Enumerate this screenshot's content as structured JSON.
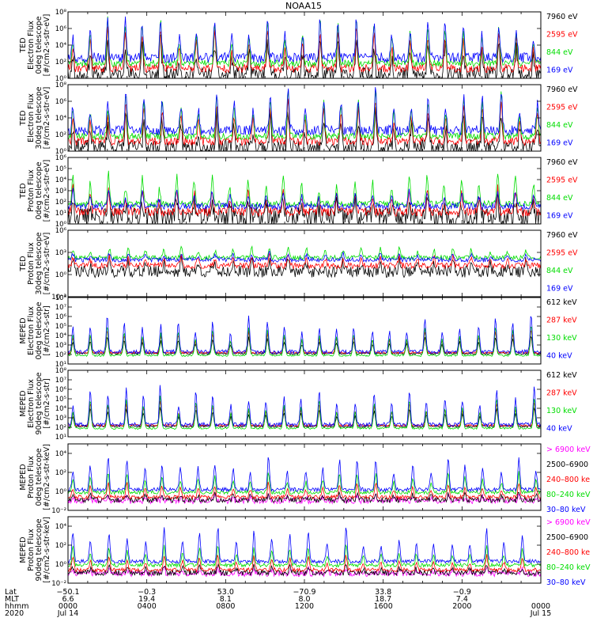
{
  "title": "NOAA15",
  "panels": [
    {
      "ylabel": [
        "TED",
        "Electron Flux",
        "0deg telescope",
        "[#/cm2-s-str-eV]"
      ],
      "yticks": [
        {
          "e": 0,
          "label": "10⁰"
        },
        {
          "e": 2,
          "label": "10²"
        },
        {
          "e": 4,
          "label": "10⁴"
        },
        {
          "e": 6,
          "label": "10⁶"
        },
        {
          "e": 8,
          "label": "10⁸"
        }
      ],
      "legend": [
        {
          "label": "7960 eV",
          "color": "#000000"
        },
        {
          "label": "2595 eV",
          "color": "#ff0000"
        },
        {
          "label": "844 eV",
          "color": "#00dd00"
        },
        {
          "label": "169 eV",
          "color": "#0000ff"
        }
      ]
    },
    {
      "ylabel": [
        "TED",
        "Electron Flux",
        "30deg telescope",
        "[#/cm2-s-str-eV]"
      ],
      "yticks": [
        {
          "e": 0,
          "label": "10⁰"
        },
        {
          "e": 2,
          "label": "10²"
        },
        {
          "e": 4,
          "label": "10⁴"
        },
        {
          "e": 6,
          "label": "10⁶"
        },
        {
          "e": 8,
          "label": "10⁸"
        }
      ],
      "legend": [
        {
          "label": "7960 eV",
          "color": "#000000"
        },
        {
          "label": "2595 eV",
          "color": "#ff0000"
        },
        {
          "label": "844 eV",
          "color": "#00dd00"
        },
        {
          "label": "169 eV",
          "color": "#0000ff"
        }
      ]
    },
    {
      "ylabel": [
        "TED",
        "Proton Flux",
        "0deg telescope",
        "[#/cm2-s-str-eV]"
      ],
      "yticks": [
        {
          "e": 0,
          "label": "10⁰"
        },
        {
          "e": 1,
          "label": "10¹"
        },
        {
          "e": 2,
          "label": "10²"
        },
        {
          "e": 3,
          "label": "10³"
        },
        {
          "e": 4,
          "label": "10⁴"
        },
        {
          "e": 5,
          "label": "10⁵"
        },
        {
          "e": 6,
          "label": "10⁶"
        }
      ],
      "legend": [
        {
          "label": "7960 eV",
          "color": "#000000"
        },
        {
          "label": "2595 eV",
          "color": "#ff0000"
        },
        {
          "label": "844 eV",
          "color": "#00dd00"
        },
        {
          "label": "169 eV",
          "color": "#0000ff"
        }
      ]
    },
    {
      "ylabel": [
        "TED",
        "Proton Flux",
        "30deg telescope",
        "[#/cm2-s-str-eV]"
      ],
      "yticks": [
        {
          "e": -3,
          "label": "10⁻³"
        },
        {
          "e": 0,
          "label": "10⁰"
        },
        {
          "e": 3,
          "label": "10³"
        },
        {
          "e": 6,
          "label": "10⁶"
        }
      ],
      "legend": [
        {
          "label": "7960 eV",
          "color": "#000000"
        },
        {
          "label": "2595 eV",
          "color": "#ff0000"
        },
        {
          "label": "844 eV",
          "color": "#00dd00"
        },
        {
          "label": "169 eV",
          "color": "#0000ff"
        }
      ]
    },
    {
      "ylabel": [
        "MEPED",
        "Electron Flux",
        "0deg telescope",
        "[#/cm2-s-str]"
      ],
      "yticks": [
        {
          "e": 1,
          "label": "10¹"
        },
        {
          "e": 2,
          "label": "10²"
        },
        {
          "e": 3,
          "label": "10³"
        },
        {
          "e": 4,
          "label": "10⁴"
        },
        {
          "e": 5,
          "label": "10⁵"
        },
        {
          "e": 6,
          "label": "10⁶"
        },
        {
          "e": 7,
          "label": "10⁷"
        },
        {
          "e": 8,
          "label": "10⁸"
        }
      ],
      "legend": [
        {
          "label": "612 keV",
          "color": "#000000"
        },
        {
          "label": "287 keV",
          "color": "#ff0000"
        },
        {
          "label": "130 keV",
          "color": "#00dd00"
        },
        {
          "label": "40 keV",
          "color": "#0000ff"
        }
      ]
    },
    {
      "ylabel": [
        "MEPED",
        "Electron Flux",
        "90deg telescope",
        "[#/cm2-s-str]"
      ],
      "yticks": [
        {
          "e": 1,
          "label": "10¹"
        },
        {
          "e": 2,
          "label": "10²"
        },
        {
          "e": 3,
          "label": "10³"
        },
        {
          "e": 4,
          "label": "10⁴"
        },
        {
          "e": 5,
          "label": "10⁵"
        },
        {
          "e": 6,
          "label": "10⁶"
        },
        {
          "e": 7,
          "label": "10⁷"
        },
        {
          "e": 8,
          "label": "10⁸"
        }
      ],
      "legend": [
        {
          "label": "612 keV",
          "color": "#000000"
        },
        {
          "label": "287 keV",
          "color": "#ff0000"
        },
        {
          "label": "130 keV",
          "color": "#00dd00"
        },
        {
          "label": "40 keV",
          "color": "#0000ff"
        }
      ]
    },
    {
      "ylabel": [
        "MEPED",
        "Proton Flux",
        "0deg telescope",
        "[#/cm2-s-str-keV]"
      ],
      "yticks": [
        {
          "e": -2,
          "label": "10⁻²"
        },
        {
          "e": 0,
          "label": "10⁰"
        },
        {
          "e": 2,
          "label": "10²"
        },
        {
          "e": 4,
          "label": "10⁴"
        }
      ],
      "legend": [
        {
          "label": "> 6900 keV",
          "color": "#ff00ff"
        },
        {
          "label": "2500–6900",
          "color": "#000000"
        },
        {
          "label": "240–800 ke",
          "color": "#ff0000"
        },
        {
          "label": "80–240 keV",
          "color": "#00dd00"
        },
        {
          "label": "30–80 keV",
          "color": "#0000ff"
        }
      ]
    },
    {
      "ylabel": [
        "MEPED",
        "Proton Flux",
        "90deg telescope",
        "[#/cm2-s-str-keV]"
      ],
      "yticks": [
        {
          "e": -2,
          "label": "10⁻²"
        },
        {
          "e": 0,
          "label": "10⁰"
        },
        {
          "e": 2,
          "label": "10²"
        },
        {
          "e": 4,
          "label": "10⁴"
        }
      ],
      "legend": [
        {
          "label": "> 6900 keV",
          "color": "#ff00ff"
        },
        {
          "label": "2500–6900",
          "color": "#000000"
        },
        {
          "label": "240–800 ke",
          "color": "#ff0000"
        },
        {
          "label": "80–240 keV",
          "color": "#00dd00"
        },
        {
          "label": "30–80 keV",
          "color": "#0000ff"
        }
      ]
    }
  ],
  "bottom_axis": {
    "row_labels": [
      "Lat",
      "MLT",
      "hhmm",
      "2020"
    ],
    "columns": [
      {
        "lat": "−50.1",
        "mlt": "6.6",
        "hhmm": "0000",
        "date": "Jul 14"
      },
      {
        "lat": "−0.3",
        "mlt": "19.4",
        "hhmm": "0400",
        "date": ""
      },
      {
        "lat": "53.0",
        "mlt": "8.1",
        "hhmm": "0800",
        "date": ""
      },
      {
        "lat": "−70.9",
        "mlt": "8.0",
        "hhmm": "1200",
        "date": ""
      },
      {
        "lat": "33.8",
        "mlt": "18.7",
        "hhmm": "1600",
        "date": ""
      },
      {
        "lat": "−0.9",
        "mlt": "7.4",
        "hhmm": "2000",
        "date": ""
      },
      {
        "lat": "",
        "mlt": "",
        "hhmm": "0000",
        "date": "Jul 15"
      }
    ]
  },
  "chart_data": {
    "type": "line",
    "title": "NOAA15",
    "x_range_hours": [
      0,
      24
    ],
    "xlabel_rows": [
      "Lat",
      "MLT",
      "hhmm",
      "2020"
    ],
    "y_scale": "log",
    "grid": false,
    "legend_placement": "right",
    "panels": [
      {
        "ylabel": "TED Electron Flux 0deg telescope [#/cm2-s-str-eV]",
        "ylim_exp": [
          0,
          8
        ],
        "seed": 11,
        "series": [
          {
            "name": "7960 eV",
            "color": "#000000",
            "base": 0.4,
            "amp": 4.5,
            "noise": 1.0
          },
          {
            "name": "2595 eV",
            "color": "#ff0000",
            "base": 1.2,
            "amp": 5.0,
            "noise": 0.5
          },
          {
            "name": "844 eV",
            "color": "#00dd00",
            "base": 1.8,
            "amp": 5.5,
            "noise": 0.4
          },
          {
            "name": "169 eV",
            "color": "#0000ff",
            "base": 2.5,
            "amp": 5.0,
            "noise": 0.6
          }
        ]
      },
      {
        "ylabel": "TED Electron Flux 30deg telescope [#/cm2-s-str-eV]",
        "ylim_exp": [
          0,
          8
        ],
        "seed": 23,
        "series": [
          {
            "name": "7960 eV",
            "color": "#000000",
            "base": 0.4,
            "amp": 4.5,
            "noise": 1.0
          },
          {
            "name": "2595 eV",
            "color": "#ff0000",
            "base": 1.2,
            "amp": 5.0,
            "noise": 0.5
          },
          {
            "name": "844 eV",
            "color": "#00dd00",
            "base": 1.8,
            "amp": 5.5,
            "noise": 0.4
          },
          {
            "name": "169 eV",
            "color": "#0000ff",
            "base": 2.5,
            "amp": 5.0,
            "noise": 0.6
          }
        ]
      },
      {
        "ylabel": "TED Proton Flux 0deg telescope [#/cm2-s-str-eV]",
        "ylim_exp": [
          0,
          6
        ],
        "seed": 37,
        "series": [
          {
            "name": "7960 eV",
            "color": "#000000",
            "base": 0.6,
            "amp": 2.0,
            "noise": 0.9
          },
          {
            "name": "2595 eV",
            "color": "#ff0000",
            "base": 1.1,
            "amp": 2.2,
            "noise": 0.4
          },
          {
            "name": "844 eV",
            "color": "#00dd00",
            "base": 1.8,
            "amp": 2.8,
            "noise": 0.3
          },
          {
            "name": "169 eV",
            "color": "#0000ff",
            "base": 1.6,
            "amp": 1.5,
            "noise": 0.3
          }
        ]
      },
      {
        "ylabel": "TED Proton Flux 30deg telescope [#/cm2-s-str-eV]",
        "ylim_exp": [
          -3,
          6
        ],
        "seed": 41,
        "series": [
          {
            "name": "7960 eV",
            "color": "#000000",
            "base": 0.4,
            "amp": 1.8,
            "noise": 0.8
          },
          {
            "name": "2595 eV",
            "color": "#ff0000",
            "base": 1.2,
            "amp": 1.6,
            "noise": 0.4
          },
          {
            "name": "844 eV",
            "color": "#00dd00",
            "base": 2.3,
            "amp": 1.5,
            "noise": 0.3
          },
          {
            "name": "169 eV",
            "color": "#0000ff",
            "base": 2.0,
            "amp": 1.0,
            "noise": 0.3
          }
        ]
      },
      {
        "ylabel": "MEPED Electron Flux 0deg telescope [#/cm2-s-str]",
        "ylim_exp": [
          1,
          8
        ],
        "seed": 53,
        "series": [
          {
            "name": "612 keV",
            "color": "#000000",
            "base": 2.1,
            "amp": 2.0,
            "noise": 0.1
          },
          {
            "name": "287 keV",
            "color": "#ff0000",
            "base": 2.2,
            "amp": 2.6,
            "noise": 0.1
          },
          {
            "name": "130 keV",
            "color": "#00dd00",
            "base": 1.9,
            "amp": 3.5,
            "noise": 0.1
          },
          {
            "name": "40 keV",
            "color": "#0000ff",
            "base": 2.3,
            "amp": 4.2,
            "noise": 0.2
          }
        ]
      },
      {
        "ylabel": "MEPED Electron Flux 90deg telescope [#/cm2-s-str]",
        "ylim_exp": [
          1,
          8
        ],
        "seed": 67,
        "series": [
          {
            "name": "612 keV",
            "color": "#000000",
            "base": 2.1,
            "amp": 2.2,
            "noise": 0.1
          },
          {
            "name": "287 keV",
            "color": "#ff0000",
            "base": 2.2,
            "amp": 2.8,
            "noise": 0.1
          },
          {
            "name": "130 keV",
            "color": "#00dd00",
            "base": 1.9,
            "amp": 3.6,
            "noise": 0.1
          },
          {
            "name": "40 keV",
            "color": "#0000ff",
            "base": 2.3,
            "amp": 4.4,
            "noise": 0.2
          }
        ]
      },
      {
        "ylabel": "MEPED Proton Flux 0deg telescope [#/cm2-s-str-keV]",
        "ylim_exp": [
          -2,
          5
        ],
        "seed": 79,
        "series": [
          {
            "name": "> 6900 keV",
            "color": "#ff00ff",
            "base": -1.0,
            "amp": 0.6,
            "noise": 0.3
          },
          {
            "name": "2500-6900",
            "color": "#000000",
            "base": -0.9,
            "amp": 0.8,
            "noise": 0.3
          },
          {
            "name": "240-800 ke",
            "color": "#ff0000",
            "base": -0.6,
            "amp": 1.6,
            "noise": 0.2
          },
          {
            "name": "80-240 keV",
            "color": "#00dd00",
            "base": -0.1,
            "amp": 2.2,
            "noise": 0.2
          },
          {
            "name": "30-80 keV",
            "color": "#0000ff",
            "base": 0.2,
            "amp": 3.6,
            "noise": 0.2
          }
        ]
      },
      {
        "ylabel": "MEPED Proton Flux 90deg telescope [#/cm2-s-str-keV]",
        "ylim_exp": [
          -2,
          5
        ],
        "seed": 83,
        "series": [
          {
            "name": "> 6900 keV",
            "color": "#ff00ff",
            "base": -1.0,
            "amp": 0.6,
            "noise": 0.3
          },
          {
            "name": "2500-6900",
            "color": "#000000",
            "base": -0.9,
            "amp": 0.8,
            "noise": 0.3
          },
          {
            "name": "240-800 ke",
            "color": "#ff0000",
            "base": -0.6,
            "amp": 1.6,
            "noise": 0.2
          },
          {
            "name": "80-240 keV",
            "color": "#00dd00",
            "base": -0.1,
            "amp": 2.2,
            "noise": 0.2
          },
          {
            "name": "30-80 keV",
            "color": "#0000ff",
            "base": 0.3,
            "amp": 3.7,
            "noise": 0.2
          }
        ]
      }
    ]
  }
}
